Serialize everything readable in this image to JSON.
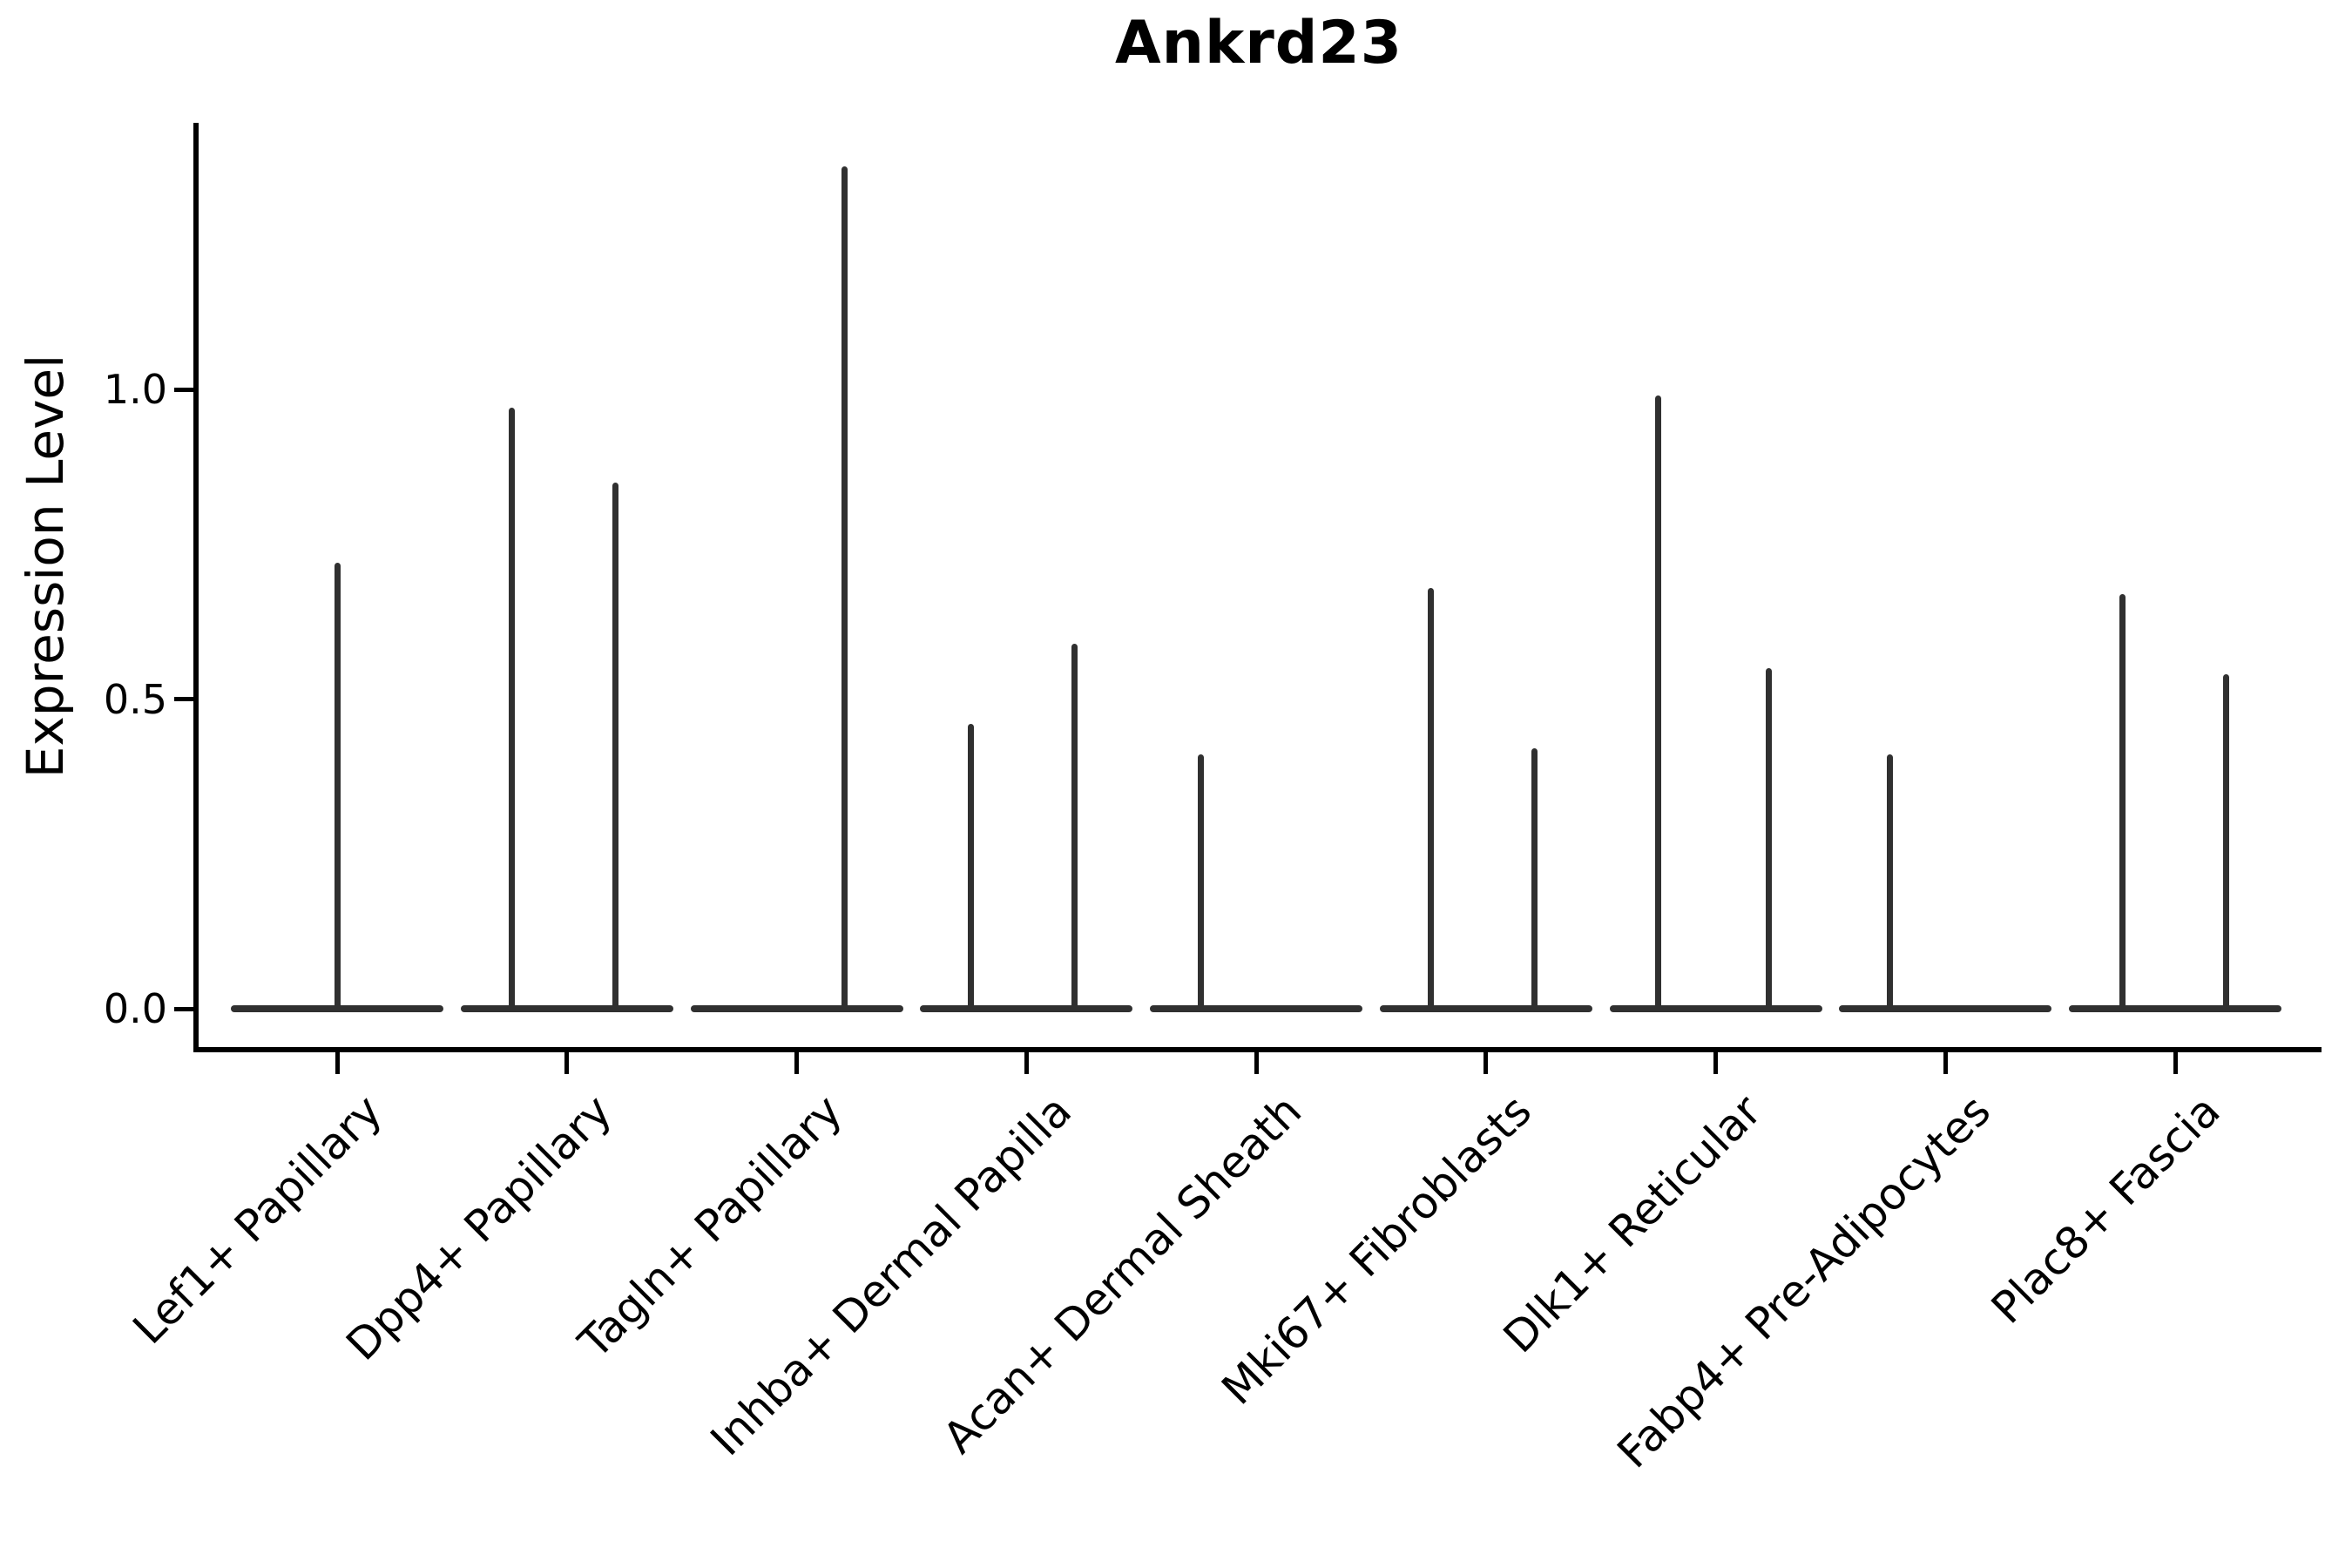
{
  "title": "Ankrd23",
  "colors": {
    "violin": "#303030",
    "axis": "#000000",
    "text": "#000000",
    "background": "#ffffff"
  },
  "chart_data": {
    "type": "violin",
    "title": "Ankrd23",
    "xlabel": "",
    "ylabel": "Expression Level",
    "grid": false,
    "legend_position": "none",
    "yticks": [
      {
        "value": 0.0,
        "label": "0.0"
      },
      {
        "value": 0.5,
        "label": "0.5"
      },
      {
        "value": 1.0,
        "label": "1.0"
      }
    ],
    "ylim": [
      -0.07,
      1.43
    ],
    "categories": [
      "Lef1+ Papillary",
      "Dpp4+ Papillary",
      "Tagln+ Papillary",
      "Inhba+ Dermal Papilla",
      "Acan+ Dermal Sheath",
      "Mki67+ Fibroblasts",
      "Dlk1+ Reticular",
      "Fabp4+ Pre-Adipocytes",
      "Plac8+ Fascia"
    ],
    "violin_body_halfwidth": 0.46,
    "violins": [
      {
        "category": "Lef1+ Papillary",
        "baseline_value": 0.0,
        "spikes": [
          {
            "offset": 0.0,
            "max": 0.72
          }
        ]
      },
      {
        "category": "Dpp4+ Papillary",
        "baseline_value": 0.0,
        "spikes": [
          {
            "offset": -0.24,
            "max": 0.97
          },
          {
            "offset": 0.21,
            "max": 0.85
          }
        ]
      },
      {
        "category": "Tagln+ Papillary",
        "baseline_value": 0.0,
        "spikes": [
          {
            "offset": 0.21,
            "max": 1.36
          }
        ]
      },
      {
        "category": "Inhba+ Dermal Papilla",
        "baseline_value": 0.0,
        "spikes": [
          {
            "offset": -0.24,
            "max": 0.46
          },
          {
            "offset": 0.21,
            "max": 0.59
          }
        ]
      },
      {
        "category": "Acan+ Dermal Sheath",
        "baseline_value": 0.0,
        "spikes": [
          {
            "offset": -0.24,
            "max": 0.41
          }
        ]
      },
      {
        "category": "Mki67+ Fibroblasts",
        "baseline_value": 0.0,
        "spikes": [
          {
            "offset": -0.24,
            "max": 0.68
          },
          {
            "offset": 0.21,
            "max": 0.42
          }
        ]
      },
      {
        "category": "Dlk1+ Reticular",
        "baseline_value": 0.0,
        "spikes": [
          {
            "offset": -0.25,
            "max": 0.99
          },
          {
            "offset": 0.23,
            "max": 0.55
          }
        ]
      },
      {
        "category": "Fabp4+ Pre-Adipocytes",
        "baseline_value": 0.0,
        "spikes": [
          {
            "offset": -0.24,
            "max": 0.41
          }
        ]
      },
      {
        "category": "Plac8+ Fascia",
        "baseline_value": 0.0,
        "spikes": [
          {
            "offset": -0.23,
            "max": 0.67
          },
          {
            "offset": 0.22,
            "max": 0.54
          }
        ]
      }
    ]
  }
}
